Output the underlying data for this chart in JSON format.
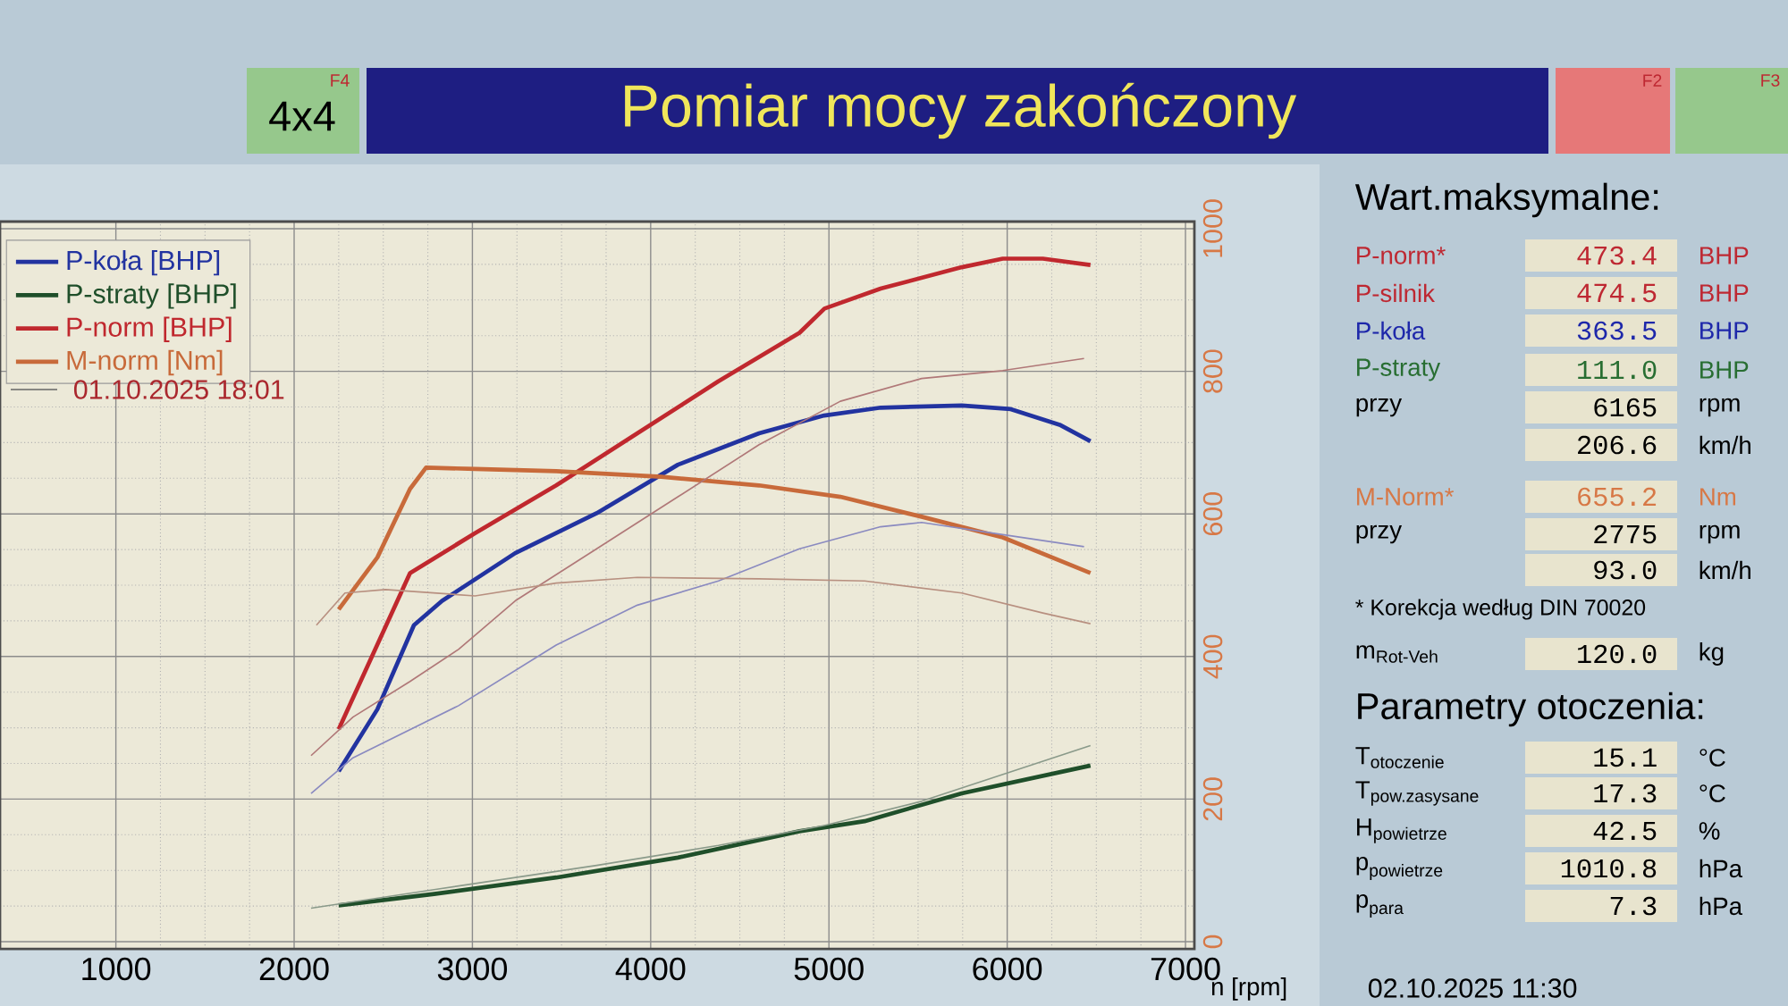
{
  "chart_data": {
    "type": "line",
    "title": "Pomiar mocy zakończony",
    "xlabel": "n [rpm]",
    "xlim": [
      350,
      7050
    ],
    "ylim": [
      -10,
      1010
    ],
    "xticks": [
      1000,
      2000,
      3000,
      4000,
      5000,
      6000,
      7000
    ],
    "yticks": [
      0,
      200,
      400,
      600,
      800,
      1000
    ],
    "grid": true,
    "legend": "top left",
    "series": [
      {
        "name": "P-koła [BHP]",
        "color": "#2233a0",
        "x": [
          2250,
          2467,
          2672,
          2830,
          3240,
          3697,
          4153,
          4608,
          4973,
          5290,
          5745,
          6020,
          6294,
          6467
        ],
        "values": [
          239,
          326,
          444,
          478,
          545,
          601,
          669,
          713,
          738,
          749,
          752,
          747,
          725,
          702
        ]
      },
      {
        "name": "P-straty [BHP]",
        "color": "#1f4f2a",
        "x": [
          2250,
          2785,
          3470,
          4153,
          4835,
          5200,
          5745,
          6467
        ],
        "values": [
          51,
          67,
          90,
          118,
          155,
          169,
          208,
          247
        ]
      },
      {
        "name": "P-norm [BHP]",
        "color": "#c0282e",
        "x": [
          2250,
          2650,
          3015,
          3470,
          3925,
          4380,
          4835,
          4975,
          5290,
          5745,
          5975,
          6200,
          6467
        ],
        "values": [
          298,
          517,
          573,
          640,
          713,
          786,
          854,
          888,
          916,
          946,
          958,
          958,
          949
        ]
      },
      {
        "name": "M-norm [Nm]",
        "color": "#c86a3a",
        "x": [
          2250,
          2467,
          2650,
          2740,
          3015,
          3470,
          4060,
          4608,
          5064,
          5520,
          5975,
          6467
        ],
        "values": [
          466,
          539,
          635,
          665,
          663,
          660,
          652,
          640,
          624,
          596,
          567,
          517
        ]
      },
      {
        "color": "#b07878",
        "x": [
          2095,
          2330,
          2650,
          2922,
          3240,
          3697,
          4153,
          4608,
          5064,
          5520,
          5975,
          6431
        ],
        "values": [
          261,
          315,
          365,
          410,
          478,
          551,
          624,
          697,
          758,
          790,
          801,
          818
        ]
      },
      {
        "color": "#8a8ac0",
        "x": [
          2095,
          2330,
          2922,
          3470,
          3925,
          4380,
          4835,
          5290,
          5520,
          5975,
          6431
        ],
        "values": [
          208,
          258,
          331,
          416,
          472,
          506,
          551,
          582,
          588,
          571,
          554
        ]
      },
      {
        "color": "#b89080",
        "x": [
          2125,
          2285,
          2512,
          3015,
          3470,
          3925,
          4608,
          5200,
          5745,
          6200,
          6467
        ],
        "values": [
          444,
          489,
          494,
          485,
          503,
          511,
          509,
          506,
          489,
          461,
          446
        ]
      },
      {
        "color": "#8a9a8a",
        "x": [
          2095,
          2785,
          3697,
          4380,
          4973,
          5520,
          6467
        ],
        "values": [
          47,
          73,
          107,
          135,
          163,
          197,
          275
        ]
      }
    ],
    "annotations": [
      "Wart.maksymalne:",
      "P-norm*",
      "473.4",
      "BHP",
      "P-silnik",
      "474.5",
      "BHP",
      "P-koła",
      "363.5",
      "BHP",
      "P-straty",
      "111.0",
      "BHP",
      "przy",
      "6165",
      "rpm",
      "206.6",
      "km/h",
      "M-Norm*",
      "655.2",
      "Nm",
      "przy",
      "2775",
      "rpm",
      "93.0",
      "km/h",
      "* Korekcja według DIN 70020",
      "\\text{m}_{\\text{Rot-Veh}}",
      "120.0",
      "kg",
      "Parametry otoczenia:",
      "\\text{T}_{\\text{otoczenie}}",
      "15.1",
      "°C",
      "\\text{T}_{\\text{pow.zasysane}}",
      "17.3",
      "°C",
      "\\text{H}_{\\text{powietrze}}",
      "42.5",
      "%",
      "\\text{p}_{\\text{powietrze}}",
      "1010.8",
      "hPa",
      "\\text{p}_{\\text{para}}",
      "7.3",
      "hPa",
      "01.10.2025 18:01",
      "02.10.2025 11:30",
      "4x4",
      "F4",
      "F2",
      "F3"
    ]
  }
}
